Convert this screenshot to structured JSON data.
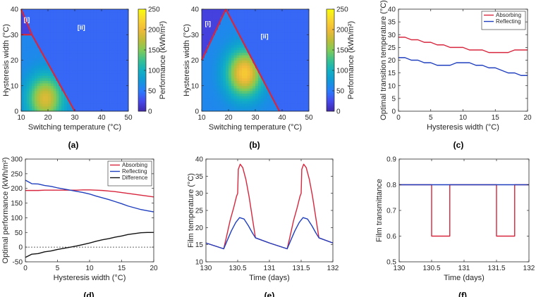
{
  "chart_data": [
    {
      "panel": "(a)",
      "type": "heatmap",
      "xlabel": "Switching temperature (°C)",
      "ylabel": "Hysteresis width (°C)",
      "xlim": [
        10,
        50
      ],
      "ylim": [
        0,
        40
      ],
      "xticks": [
        "10",
        "20",
        "30",
        "40",
        "50"
      ],
      "yticks": [
        "0",
        "10",
        "20",
        "30",
        "40"
      ],
      "colorbar": {
        "label": "Performance (kWh/m²)",
        "range": [
          0,
          250
        ],
        "ticks": [
          "0",
          "50",
          "100",
          "150",
          "200",
          "250"
        ]
      },
      "region_labels": [
        "[i]",
        "[ii]"
      ],
      "boundary": {
        "x": [
          10,
          14,
          10
        ],
        "y": [
          30,
          30,
          40
        ],
        "x2": [
          14,
          30
        ],
        "y2": [
          30,
          0
        ],
        "color": "#d7263d"
      },
      "peak": {
        "x": 19,
        "y": 5,
        "value": 190
      }
    },
    {
      "panel": "(b)",
      "type": "heatmap",
      "xlabel": "Switching temperature (°C)",
      "ylabel": "Hysteresis width (°C)",
      "xlim": [
        10,
        50
      ],
      "ylim": [
        0,
        40
      ],
      "xticks": [
        "10",
        "20",
        "30",
        "40",
        "50"
      ],
      "yticks": [
        "0",
        "10",
        "20",
        "30",
        "40"
      ],
      "colorbar": {
        "label": "Performance (kWh/m²)",
        "range": [
          0,
          250
        ],
        "ticks": [
          "0",
          "50",
          "100",
          "150",
          "200",
          "250"
        ]
      },
      "region_labels": [
        "[i]",
        "[ii]"
      ],
      "boundary": {
        "x": [
          10,
          19
        ],
        "y": [
          20,
          40
        ],
        "x2": [
          19,
          39
        ],
        "y2": [
          40,
          0
        ],
        "color": "#d7263d"
      },
      "peak": {
        "x": 26,
        "y": 15,
        "value": 215
      }
    },
    {
      "panel": "(c)",
      "type": "line",
      "xlabel": "Hysteresis width (°C)",
      "ylabel": "Optimal transition temperature (°C)",
      "xlim": [
        0,
        20
      ],
      "ylim": [
        0,
        40
      ],
      "xticks": [
        "0",
        "5",
        "10",
        "15",
        "20"
      ],
      "yticks": [
        "0",
        "5",
        "10",
        "15",
        "20",
        "25",
        "30",
        "35",
        "40"
      ],
      "legend": "top-right",
      "x": [
        0,
        1,
        2,
        3,
        4,
        5,
        6,
        7,
        8,
        9,
        10,
        11,
        12,
        13,
        14,
        15,
        16,
        17,
        18,
        19,
        20
      ],
      "series": [
        {
          "name": "Absorbing",
          "color": "#d7263d",
          "values": [
            29,
            29,
            28,
            28,
            27,
            27,
            26,
            26,
            25,
            25,
            25,
            24,
            24,
            24,
            23,
            23,
            23,
            23,
            24,
            24,
            24
          ]
        },
        {
          "name": "Reflecting",
          "color": "#1f3fbf",
          "values": [
            21,
            21,
            20,
            20,
            19,
            19,
            18,
            18,
            18,
            19,
            19,
            19,
            18,
            18,
            17,
            17,
            16,
            15,
            15,
            14,
            14
          ]
        }
      ]
    },
    {
      "panel": "(d)",
      "type": "line",
      "xlabel": "Hysteresis width (°C)",
      "ylabel": "Optimal performance (kWh/m²)",
      "xlim": [
        0,
        20
      ],
      "ylim": [
        -50,
        300
      ],
      "xticks": [
        "0",
        "5",
        "10",
        "15",
        "20"
      ],
      "yticks": [
        "-50",
        "0",
        "50",
        "100",
        "150",
        "200",
        "250",
        "300"
      ],
      "legend": "top-right",
      "zero_line": true,
      "x": [
        0,
        1,
        2,
        3,
        4,
        5,
        6,
        7,
        8,
        9,
        10,
        11,
        12,
        13,
        14,
        15,
        16,
        17,
        18,
        19,
        20
      ],
      "series": [
        {
          "name": "Absorbing",
          "color": "#d7263d",
          "values": [
            193,
            193,
            193,
            194,
            194,
            194,
            194,
            194,
            194,
            195,
            195,
            194,
            193,
            191,
            189,
            186,
            183,
            180,
            177,
            174,
            171
          ]
        },
        {
          "name": "Reflecting",
          "color": "#1f3fbf",
          "values": [
            228,
            216,
            215,
            210,
            207,
            202,
            198,
            194,
            190,
            186,
            181,
            174,
            168,
            162,
            155,
            148,
            140,
            134,
            128,
            124,
            120
          ]
        },
        {
          "name": "Difference",
          "color": "#111111",
          "values": [
            -35,
            -24,
            -22,
            -16,
            -13,
            -8,
            -4,
            0,
            4,
            9,
            14,
            20,
            25,
            29,
            34,
            38,
            43,
            46,
            49,
            50,
            50
          ]
        }
      ]
    },
    {
      "panel": "(e)",
      "type": "line",
      "xlabel": "Time (days)",
      "ylabel": "Film temperature (°C)",
      "xlim": [
        130,
        132
      ],
      "ylim": [
        10,
        40
      ],
      "xticks": [
        "130",
        "130.5",
        "131",
        "131.5",
        "132"
      ],
      "yticks": [
        "10",
        "15",
        "20",
        "25",
        "30",
        "35",
        "40"
      ],
      "series": [
        {
          "name": "",
          "color": "#d7263d",
          "x": [
            130,
            130.28,
            130.32,
            130.38,
            130.44,
            130.48,
            130.5,
            130.51,
            130.54,
            130.58,
            130.63,
            130.68,
            130.73,
            130.78,
            131,
            131.28,
            131.32,
            131.38,
            131.44,
            131.48,
            131.5,
            131.51,
            131.54,
            131.58,
            131.63,
            131.68,
            131.73,
            131.78,
            132
          ],
          "values": [
            15.5,
            13.8,
            17,
            22,
            26,
            29,
            30,
            37,
            38.5,
            37.5,
            34,
            29,
            23,
            17,
            15.5,
            13.8,
            17,
            22,
            26,
            29,
            30,
            37,
            38.5,
            37.5,
            34,
            29,
            23,
            17,
            15.5
          ]
        },
        {
          "name": "",
          "color": "#1f3fbf",
          "x": [
            130,
            130.28,
            130.33,
            130.4,
            130.47,
            130.53,
            130.6,
            130.67,
            130.73,
            130.78,
            131,
            131.28,
            131.33,
            131.4,
            131.47,
            131.53,
            131.6,
            131.67,
            131.73,
            131.78,
            132
          ],
          "values": [
            15.5,
            13.8,
            16,
            19,
            21.5,
            22.9,
            22.5,
            20.5,
            18.5,
            17,
            15.5,
            13.8,
            16,
            19,
            21.5,
            22.9,
            22.5,
            20.5,
            18.5,
            17,
            15.5
          ]
        }
      ]
    },
    {
      "panel": "(f)",
      "type": "line",
      "xlabel": "Time (days)",
      "ylabel": "Film transmittance",
      "xlim": [
        130,
        132
      ],
      "ylim": [
        0.5,
        0.9
      ],
      "xticks": [
        "130",
        "130.5",
        "131",
        "131.5",
        "132"
      ],
      "yticks": [
        "0.5",
        "0.6",
        "0.7",
        "0.8",
        "0.9"
      ],
      "series": [
        {
          "name": "",
          "color": "#d7263d",
          "x": [
            130,
            130.5,
            130.5,
            130.78,
            130.78,
            131.5,
            131.5,
            131.78,
            131.78,
            132
          ],
          "values": [
            0.8,
            0.8,
            0.6,
            0.6,
            0.8,
            0.8,
            0.6,
            0.6,
            0.8,
            0.8
          ]
        },
        {
          "name": "",
          "color": "#1f3fbf",
          "x": [
            130,
            132
          ],
          "values": [
            0.8,
            0.8
          ]
        }
      ]
    }
  ]
}
